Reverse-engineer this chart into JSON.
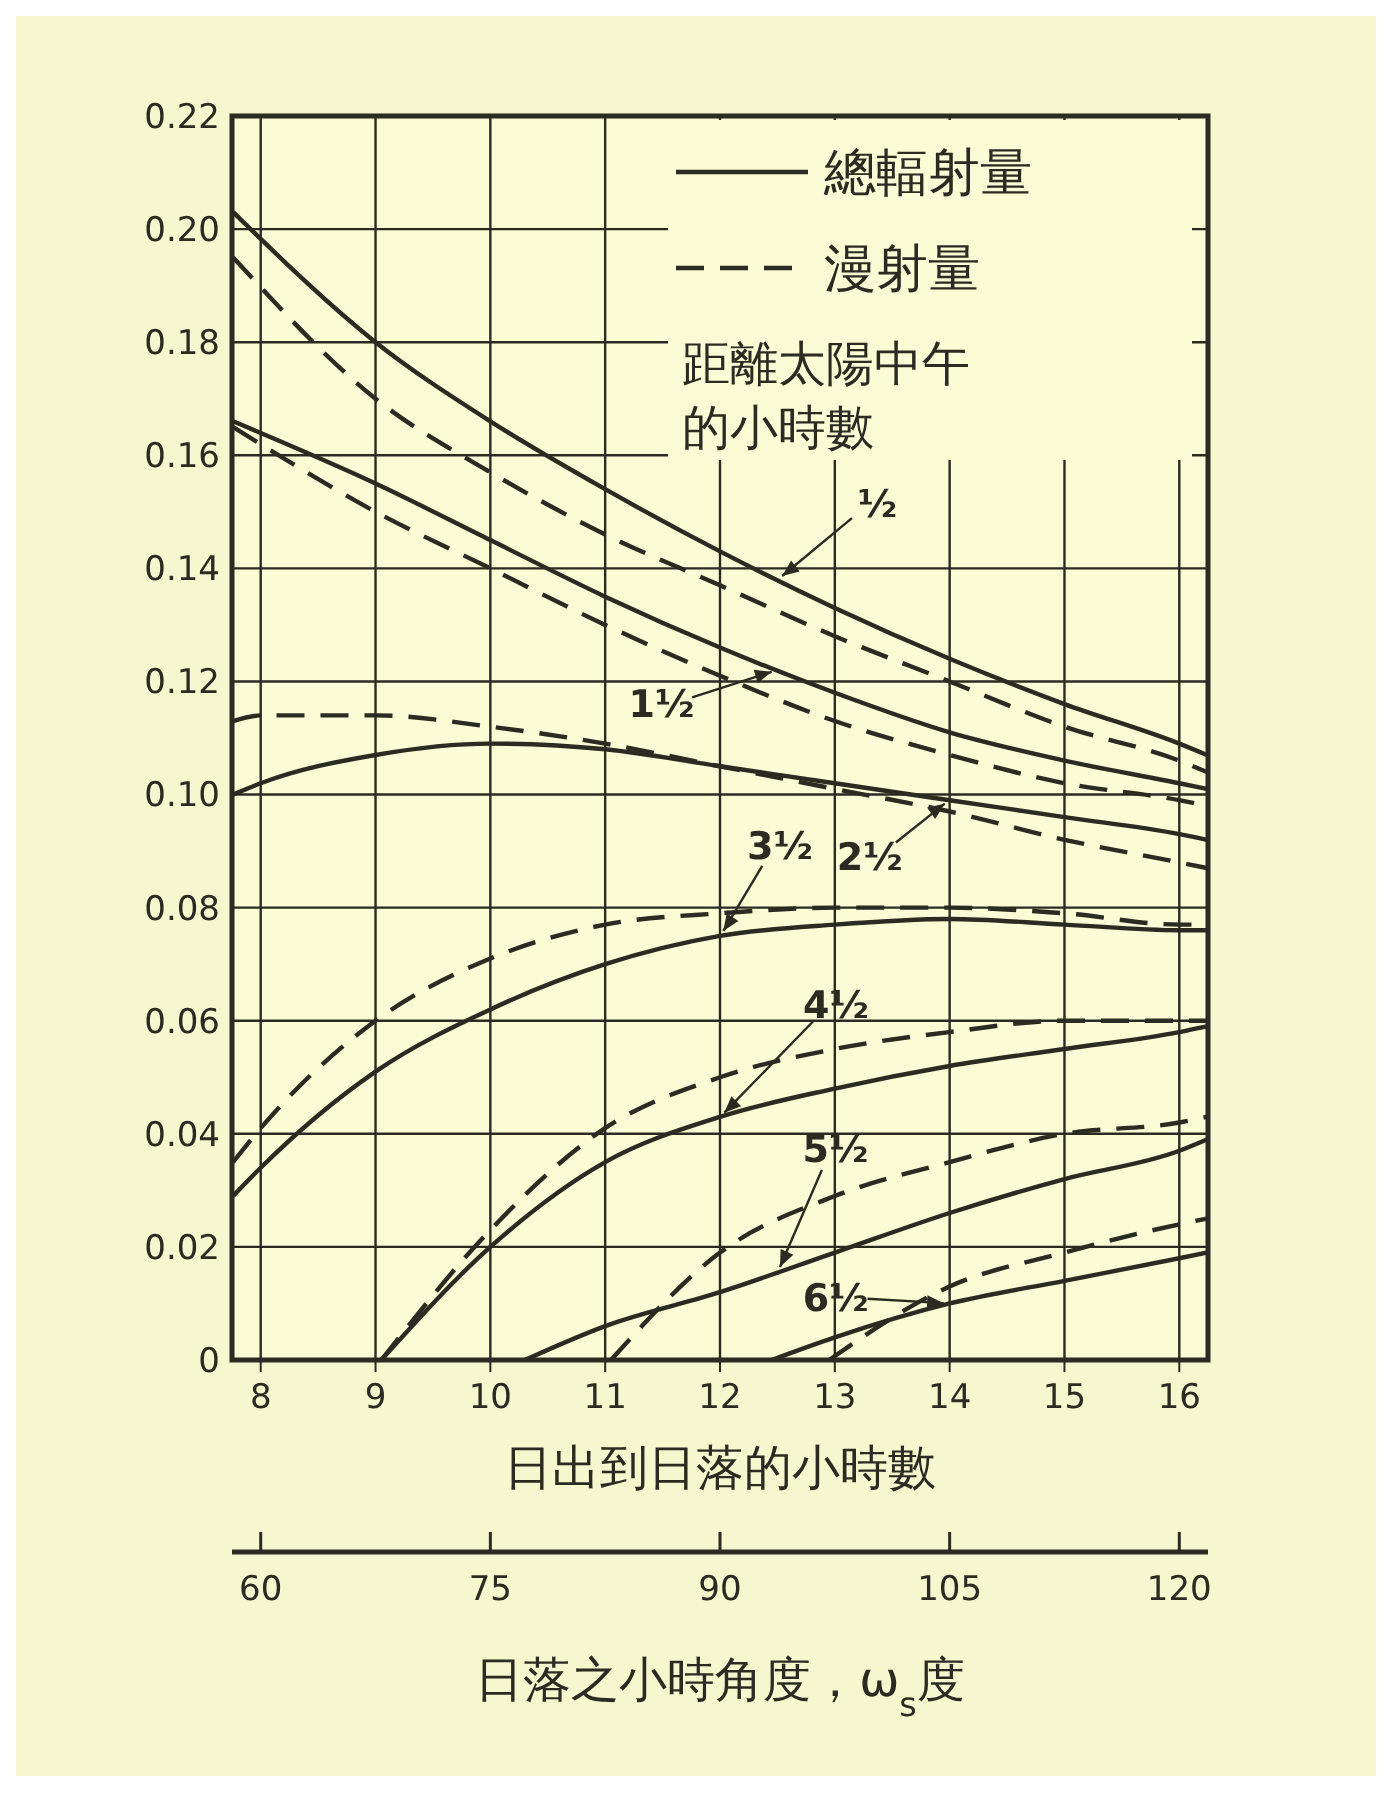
{
  "chart_data": {
    "type": "line",
    "xlabel": "日出到日落的小時數",
    "x2label": "日落之小時角度，ω$_{s}$度",
    "legend_title": "距離太陽中午的小時數",
    "xlim": [
      7.75,
      16.25
    ],
    "xticks": [
      8,
      9,
      10,
      11,
      12,
      13,
      14,
      15,
      16
    ],
    "x2lim": [
      58.125,
      121.875
    ],
    "x2ticks": [
      60,
      75,
      90,
      105,
      120
    ],
    "ylim": [
      0,
      0.22
    ],
    "yticks": [
      0,
      0.02,
      0.04,
      0.06,
      0.08,
      {
        "value": 0.1,
        "label": "0.10"
      },
      0.12,
      0.14,
      0.16,
      0.18,
      {
        "value": 0.2,
        "label": "0.20"
      },
      0.22
    ],
    "grid": true,
    "legend": "top right",
    "series": [
      {
        "name": "總輻射量",
        "color": "#2b2b22",
        "line_style": "solid",
        "x": [
          7.76,
          9,
          10,
          11,
          12,
          13,
          14,
          15,
          16,
          16.24
        ],
        "values": [
          0.203,
          0.18,
          0.166,
          0.154,
          0.143,
          0.133,
          0.124,
          0.116,
          0.109,
          0.107
        ]
      },
      {
        "name": "漫射量",
        "color": "#2b2b22",
        "line_style": "dashed",
        "x": [
          7.76,
          9,
          10,
          11,
          12,
          13,
          14,
          15,
          16,
          16.24
        ],
        "values": [
          0.195,
          0.17,
          0.157,
          0.146,
          0.137,
          0.128,
          0.12,
          0.112,
          0.106,
          0.104
        ]
      },
      {
        "color": "#2b2b22",
        "line_style": "solid",
        "x": [
          7.76,
          9,
          10,
          11,
          12,
          13,
          14,
          15,
          16,
          16.24
        ],
        "values": [
          0.166,
          0.155,
          0.145,
          0.135,
          0.126,
          0.118,
          0.111,
          0.106,
          0.102,
          0.101
        ]
      },
      {
        "color": "#2b2b22",
        "line_style": "dashed",
        "x": [
          7.76,
          9,
          10,
          11,
          12,
          13,
          14,
          15,
          16,
          16.24
        ],
        "values": [
          0.165,
          0.15,
          0.14,
          0.13,
          0.121,
          0.113,
          0.107,
          0.102,
          0.099,
          0.098
        ]
      },
      {
        "color": "#2b2b22",
        "line_style": "solid",
        "x": [
          7.76,
          8,
          9,
          10,
          11,
          12,
          13,
          14,
          15,
          16,
          16.24
        ],
        "values": [
          0.1,
          0.102,
          0.107,
          0.109,
          0.108,
          0.105,
          0.102,
          0.099,
          0.096,
          0.093,
          0.092
        ]
      },
      {
        "color": "#2b2b22",
        "line_style": "dashed",
        "x": [
          7.76,
          8,
          9,
          10,
          11,
          12,
          13,
          14,
          15,
          16,
          16.24
        ],
        "values": [
          0.113,
          0.114,
          0.114,
          0.112,
          0.109,
          0.105,
          0.101,
          0.097,
          0.092,
          0.088,
          0.087
        ]
      },
      {
        "color": "#2b2b22",
        "line_style": "solid",
        "x": [
          7.76,
          8,
          9,
          10,
          11,
          12,
          13,
          14,
          15,
          16,
          16.24
        ],
        "values": [
          0.029,
          0.034,
          0.051,
          0.062,
          0.07,
          0.075,
          0.077,
          0.078,
          0.077,
          0.076,
          0.076
        ]
      },
      {
        "color": "#2b2b22",
        "line_style": "dashed",
        "x": [
          7.76,
          8,
          9,
          10,
          11,
          12,
          13,
          14,
          15,
          16,
          16.24
        ],
        "values": [
          0.035,
          0.041,
          0.06,
          0.071,
          0.077,
          0.079,
          0.08,
          0.08,
          0.079,
          0.077,
          0.077
        ]
      },
      {
        "color": "#2b2b22",
        "line_style": "solid",
        "x": [
          9.05,
          10,
          11,
          12,
          13,
          14,
          15,
          16,
          16.24
        ],
        "values": [
          0,
          0.02,
          0.035,
          0.043,
          0.048,
          0.052,
          0.055,
          0.058,
          0.059
        ]
      },
      {
        "color": "#2b2b22",
        "line_style": "dashed",
        "x": [
          9.05,
          10,
          11,
          12,
          13,
          14,
          15,
          16,
          16.24
        ],
        "values": [
          0,
          0.023,
          0.041,
          0.05,
          0.055,
          0.058,
          0.06,
          0.06,
          0.06
        ]
      },
      {
        "color": "#2b2b22",
        "line_style": "solid",
        "x": [
          10.3,
          11,
          12,
          13,
          14,
          15,
          16,
          16.24
        ],
        "values": [
          0,
          0.006,
          0.012,
          0.019,
          0.026,
          0.032,
          0.037,
          0.039
        ]
      },
      {
        "color": "#2b2b22",
        "line_style": "dashed",
        "x": [
          11.05,
          12,
          13,
          14,
          15,
          16,
          16.24
        ],
        "values": [
          0,
          0.019,
          0.029,
          0.035,
          0.04,
          0.042,
          0.043
        ]
      },
      {
        "color": "#2b2b22",
        "line_style": "solid",
        "x": [
          12.45,
          13,
          14,
          15,
          16,
          16.24
        ],
        "values": [
          0,
          0.004,
          0.01,
          0.014,
          0.018,
          0.019
        ]
      },
      {
        "color": "#2b2b22",
        "line_style": "dashed",
        "x": [
          12.95,
          14,
          15,
          16,
          16.24
        ],
        "values": [
          0,
          0.013,
          0.019,
          0.024,
          0.025
        ]
      }
    ],
    "annotations": [
      {
        "text": "½",
        "x": 12.5,
        "y": 0.138
      },
      {
        "text": "1½",
        "x": 12.5,
        "y": 0.122
      },
      {
        "text": "2½",
        "x": 14,
        "y": 0.099
      },
      {
        "text": "3½",
        "x": 12,
        "y": 0.075
      },
      {
        "text": "4½",
        "x": 12,
        "y": 0.043
      },
      {
        "text": "5½",
        "x": 12.5,
        "y": 0.0155
      },
      {
        "text": "6½",
        "x": 14,
        "y": 0.01
      }
    ]
  }
}
